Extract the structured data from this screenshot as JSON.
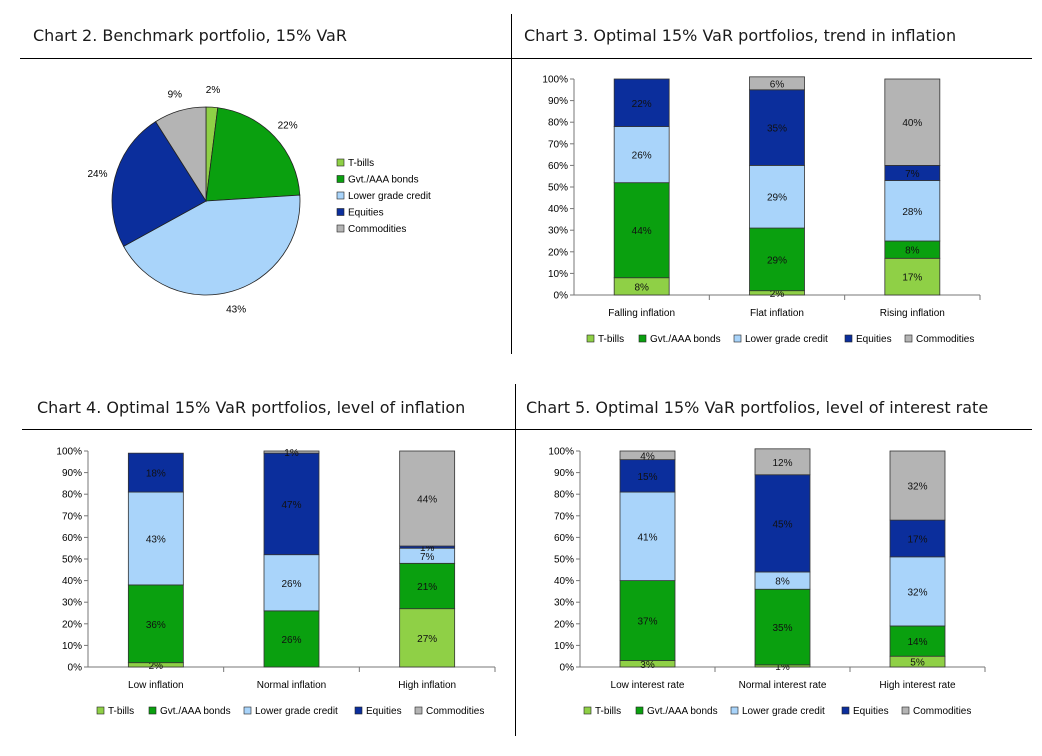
{
  "colors": {
    "T-bills": "#8fd046",
    "Gvt./AAA bonds": "#0aa00f",
    "Lower grade credit": "#a9d4fa",
    "Equities": "#0b2e9c",
    "Commodities": "#b4b4b4"
  },
  "legend_labels": [
    "T-bills",
    "Gvt./AAA bonds",
    "Lower grade credit",
    "Equities",
    "Commodities"
  ],
  "chart_data": [
    {
      "id": "chart2",
      "type": "pie",
      "title": "Chart 2. Benchmark portfolio, 15% VaR",
      "labels": [
        "T-bills",
        "Gvt./AAA bonds",
        "Lower grade credit",
        "Equities",
        "Commodities"
      ],
      "values": [
        2,
        22,
        43,
        24,
        9
      ],
      "value_labels": [
        "2%",
        "22%",
        "43%",
        "24%",
        "9%"
      ],
      "legend_position": "right"
    },
    {
      "id": "chart3",
      "type": "bar",
      "stacked": true,
      "title": "Chart 3. Optimal 15% VaR portfolios, trend in inflation",
      "categories": [
        "Falling inflation",
        "Flat inflation",
        "Rising inflation"
      ],
      "series": [
        {
          "name": "T-bills",
          "values": [
            8,
            2,
            17
          ]
        },
        {
          "name": "Gvt./AAA bonds",
          "values": [
            44,
            29,
            8
          ]
        },
        {
          "name": "Lower grade credit",
          "values": [
            26,
            29,
            28
          ]
        },
        {
          "name": "Equities",
          "values": [
            22,
            35,
            7
          ]
        },
        {
          "name": "Commodities",
          "values": [
            0,
            6,
            40
          ]
        }
      ],
      "ylim": [
        0,
        100
      ],
      "yticks": [
        "0%",
        "10%",
        "20%",
        "30%",
        "40%",
        "50%",
        "60%",
        "70%",
        "80%",
        "90%",
        "100%"
      ],
      "legend_position": "bottom"
    },
    {
      "id": "chart4",
      "type": "bar",
      "stacked": true,
      "title": "Chart 4. Optimal 15% VaR portfolios, level of inflation",
      "categories": [
        "Low inflation",
        "Normal inflation",
        "High inflation"
      ],
      "series": [
        {
          "name": "T-bills",
          "values": [
            2,
            0,
            27
          ]
        },
        {
          "name": "Gvt./AAA bonds",
          "values": [
            36,
            26,
            21
          ]
        },
        {
          "name": "Lower grade credit",
          "values": [
            43,
            26,
            7
          ]
        },
        {
          "name": "Equities",
          "values": [
            18,
            47,
            1
          ]
        },
        {
          "name": "Commodities",
          "values": [
            0,
            1,
            44
          ]
        }
      ],
      "ylim": [
        0,
        100
      ],
      "yticks": [
        "0%",
        "10%",
        "20%",
        "30%",
        "40%",
        "50%",
        "60%",
        "70%",
        "80%",
        "90%",
        "100%"
      ],
      "legend_position": "bottom"
    },
    {
      "id": "chart5",
      "type": "bar",
      "stacked": true,
      "title": "Chart 5. Optimal 15% VaR portfolios, level of interest rate",
      "categories": [
        "Low interest rate",
        "Normal interest rate",
        "High interest rate"
      ],
      "series": [
        {
          "name": "T-bills",
          "values": [
            3,
            1,
            5
          ]
        },
        {
          "name": "Gvt./AAA bonds",
          "values": [
            37,
            35,
            14
          ]
        },
        {
          "name": "Lower grade credit",
          "values": [
            41,
            8,
            32
          ]
        },
        {
          "name": "Equities",
          "values": [
            15,
            45,
            17
          ]
        },
        {
          "name": "Commodities",
          "values": [
            4,
            12,
            32
          ]
        }
      ],
      "ylim": [
        0,
        100
      ],
      "yticks": [
        "0%",
        "10%",
        "20%",
        "30%",
        "40%",
        "50%",
        "60%",
        "70%",
        "80%",
        "90%",
        "100%"
      ],
      "legend_position": "bottom"
    }
  ]
}
